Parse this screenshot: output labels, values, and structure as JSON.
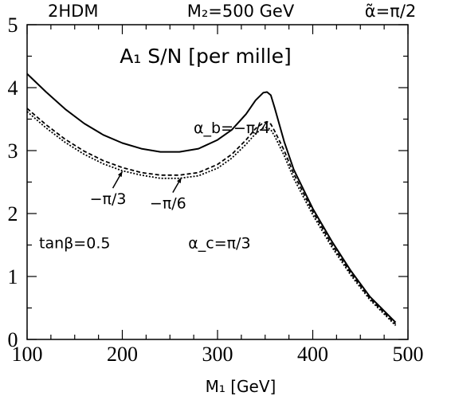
{
  "header": {
    "model": "2HDM",
    "mass": "M₂=500 GeV",
    "alpha_tilde": "α̃=π/2"
  },
  "chart_data": {
    "type": "line",
    "title": "A₁ S/N [per mille]",
    "xlabel": "M₁ [GeV]",
    "ylabel": "",
    "xlim": [
      100,
      500
    ],
    "ylim": [
      0,
      5
    ],
    "x_ticks": [
      "100",
      "200",
      "300",
      "400",
      "500"
    ],
    "y_ticks": [
      "0",
      "1",
      "2",
      "3",
      "4",
      "5"
    ],
    "grid": false,
    "series": [
      {
        "name": "α_b=−π/4",
        "style": "solid",
        "x": [
          100,
          120,
          140,
          160,
          180,
          200,
          220,
          240,
          260,
          280,
          300,
          315,
          330,
          340,
          348,
          352,
          356,
          360,
          370,
          380,
          400,
          420,
          440,
          460,
          487
        ],
        "y": [
          4.22,
          3.93,
          3.66,
          3.43,
          3.25,
          3.12,
          3.03,
          2.98,
          2.98,
          3.03,
          3.17,
          3.33,
          3.58,
          3.8,
          3.92,
          3.93,
          3.88,
          3.68,
          3.14,
          2.7,
          2.08,
          1.56,
          1.09,
          0.68,
          0.27
        ]
      },
      {
        "name": "−π/3",
        "style": "dotted",
        "x": [
          100,
          120,
          140,
          160,
          180,
          200,
          220,
          240,
          260,
          280,
          300,
          315,
          330,
          340,
          348,
          352,
          356,
          360,
          370,
          380,
          400,
          420,
          440,
          460,
          487
        ],
        "y": [
          3.62,
          3.36,
          3.13,
          2.94,
          2.79,
          2.68,
          2.61,
          2.56,
          2.56,
          2.6,
          2.72,
          2.88,
          3.1,
          3.27,
          3.36,
          3.37,
          3.33,
          3.23,
          2.92,
          2.56,
          1.98,
          1.47,
          1.02,
          0.63,
          0.22
        ]
      },
      {
        "name": "−π/6",
        "style": "dashed",
        "x": [
          100,
          120,
          140,
          160,
          180,
          200,
          220,
          240,
          260,
          280,
          300,
          315,
          330,
          340,
          348,
          352,
          356,
          360,
          370,
          380,
          400,
          420,
          440,
          460,
          487
        ],
        "y": [
          3.67,
          3.41,
          3.18,
          2.99,
          2.84,
          2.73,
          2.65,
          2.61,
          2.61,
          2.65,
          2.78,
          2.94,
          3.17,
          3.35,
          3.44,
          3.46,
          3.42,
          3.31,
          3.0,
          2.63,
          2.03,
          1.51,
          1.05,
          0.65,
          0.24
        ]
      }
    ],
    "annotations": [
      {
        "text": "α_b=−π/4",
        "x": 315,
        "y": 3.28
      },
      {
        "text": "−π/3",
        "x": 185,
        "y": 2.15,
        "arrow_to": [
          200,
          2.72
        ]
      },
      {
        "text": "−π/6",
        "x": 248,
        "y": 2.08,
        "arrow_to": [
          262,
          2.62
        ]
      },
      {
        "text": "tanβ=0.5",
        "x": 150,
        "y": 1.45
      },
      {
        "text": "α_c=π/3",
        "x": 302,
        "y": 1.45
      }
    ]
  }
}
